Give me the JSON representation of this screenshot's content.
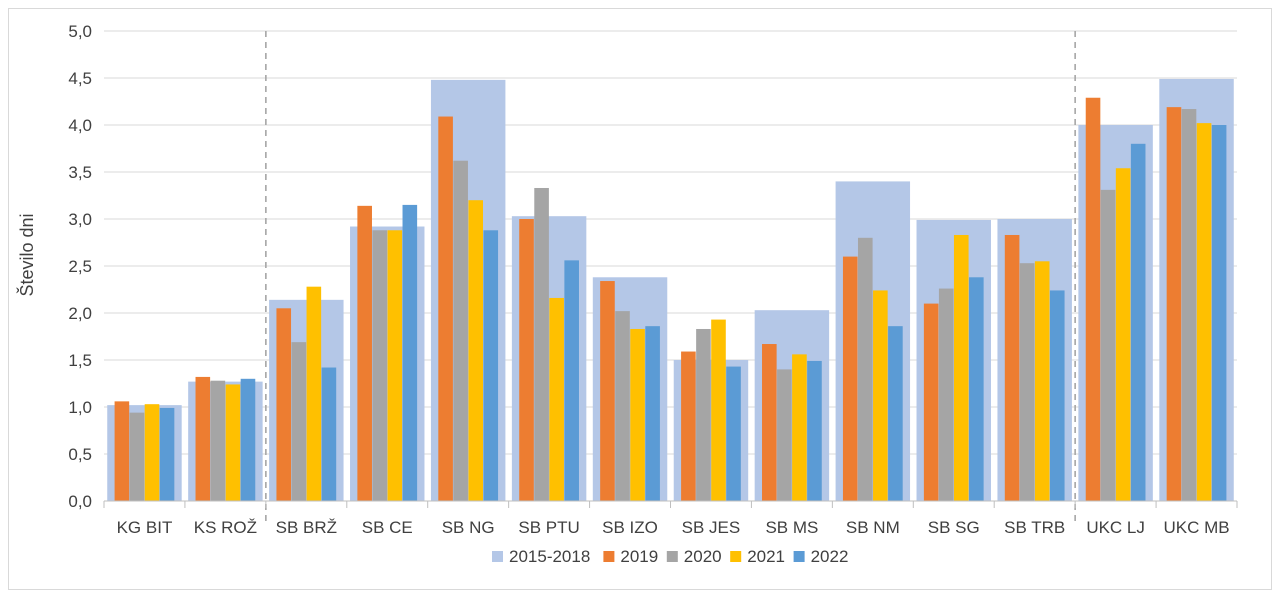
{
  "chart_data": {
    "type": "bar",
    "title": "",
    "xlabel": "",
    "ylabel": "Število dni",
    "ylim": [
      0,
      5
    ],
    "yticks": [
      "0,0",
      "0,5",
      "1,0",
      "1,5",
      "2,0",
      "2,5",
      "3,0",
      "3,5",
      "4,0",
      "4,5",
      "5,0"
    ],
    "grid": true,
    "legend_position": "bottom",
    "categories": [
      "KG BIT",
      "KS ROŽ",
      "SB BRŽ",
      "SB CE",
      "SB NG",
      "SB PTU",
      "SB IZO",
      "SB JES",
      "SB MS",
      "SB NM",
      "SB SG",
      "SB TRB",
      "UKC LJ",
      "UKC MB"
    ],
    "background_series": {
      "name": "2015-2018",
      "color": "#b4c7e7",
      "values": [
        1.02,
        1.27,
        2.14,
        2.92,
        4.48,
        3.03,
        2.38,
        1.5,
        2.03,
        3.4,
        2.99,
        3.0,
        4.0,
        4.49
      ]
    },
    "series": [
      {
        "name": "2019",
        "color": "#ed7d31",
        "values": [
          1.06,
          1.32,
          2.05,
          3.14,
          4.09,
          3.0,
          2.34,
          1.59,
          1.67,
          2.6,
          2.1,
          2.83,
          4.29,
          4.19
        ]
      },
      {
        "name": "2020",
        "color": "#a5a5a5",
        "values": [
          0.94,
          1.28,
          1.69,
          2.88,
          3.62,
          3.33,
          2.02,
          1.83,
          1.4,
          2.8,
          2.26,
          2.53,
          3.31,
          4.17
        ]
      },
      {
        "name": "2021",
        "color": "#ffc000",
        "values": [
          1.03,
          1.24,
          2.28,
          2.88,
          3.2,
          2.16,
          1.83,
          1.93,
          1.56,
          2.24,
          2.83,
          2.55,
          3.54,
          4.02
        ]
      },
      {
        "name": "2022",
        "color": "#5b9bd5",
        "values": [
          0.99,
          1.3,
          1.42,
          3.15,
          2.88,
          2.56,
          1.86,
          1.43,
          1.49,
          1.86,
          2.38,
          2.24,
          3.8,
          4.0
        ]
      }
    ],
    "separators_after_category_index": [
      1,
      11
    ]
  }
}
